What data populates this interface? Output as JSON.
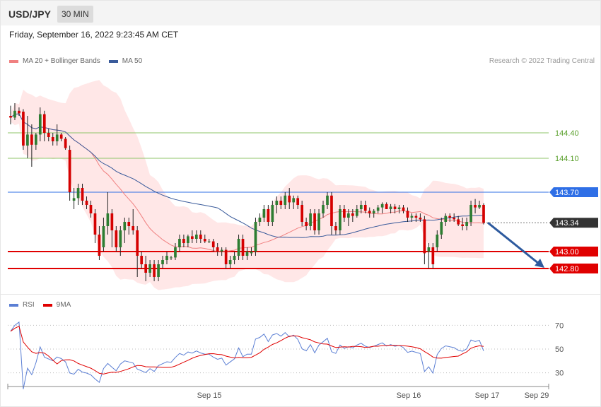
{
  "header": {
    "symbol": "USD/JPY",
    "timeframe": "30 MIN"
  },
  "datetime": "Friday, September 16, 2022 9:23:45 AM CET",
  "copyright": "Research © 2022 Trading Central",
  "legend": {
    "main": [
      {
        "label": "MA 20 + Bollinger Bands",
        "color": "#f08080"
      },
      {
        "label": "MA 50",
        "color": "#3a5b9b"
      }
    ],
    "rsi": [
      {
        "label": "RSI",
        "color": "#5b7fd4"
      },
      {
        "label": "9MA",
        "color": "#e00000"
      }
    ]
  },
  "chart_data": [
    {
      "type": "candlestick",
      "ylim": [
        142.6,
        144.9
      ],
      "x_ticks": [
        "Sep 15",
        "Sep 16",
        "Sep 17",
        "Sep 29"
      ],
      "levels": [
        {
          "value": 144.4,
          "label": "144.40",
          "role": "resistance",
          "color": "#8fc46a"
        },
        {
          "value": 144.1,
          "label": "144.10",
          "role": "resistance",
          "color": "#8fc46a"
        },
        {
          "value": 143.7,
          "label": "143.70",
          "role": "pivot",
          "color": "#2f6fe6"
        },
        {
          "value": 143.34,
          "label": "143.34",
          "role": "last",
          "color": "#333333"
        },
        {
          "value": 143.0,
          "label": "143.00",
          "role": "support",
          "color": "#e00000"
        },
        {
          "value": 142.8,
          "label": "142.80",
          "role": "support",
          "color": "#e00000"
        }
      ],
      "forecast_arrow": {
        "from": 143.34,
        "to": 142.8,
        "color": "#2d5a9e"
      },
      "ohlc": [
        [
          144.6,
          144.72,
          144.5,
          144.58
        ],
        [
          144.58,
          144.75,
          144.55,
          144.66
        ],
        [
          144.66,
          144.7,
          144.6,
          144.63
        ],
        [
          144.65,
          144.68,
          144.2,
          144.25
        ],
        [
          144.25,
          144.6,
          144.1,
          144.38
        ],
        [
          144.38,
          144.5,
          144.0,
          144.26
        ],
        [
          144.26,
          144.4,
          144.2,
          144.38
        ],
        [
          144.38,
          144.7,
          144.3,
          144.62
        ],
        [
          144.62,
          144.66,
          144.3,
          144.4
        ],
        [
          144.4,
          144.45,
          144.3,
          144.35
        ],
        [
          144.35,
          144.4,
          144.25,
          144.3
        ],
        [
          144.3,
          144.5,
          144.25,
          144.38
        ],
        [
          144.38,
          144.4,
          144.3,
          144.33
        ],
        [
          144.33,
          144.35,
          144.2,
          144.22
        ],
        [
          144.2,
          144.25,
          143.6,
          143.7
        ],
        [
          143.6,
          143.75,
          143.5,
          143.63
        ],
        [
          143.63,
          143.8,
          143.55,
          143.75
        ],
        [
          143.75,
          143.8,
          143.55,
          143.6
        ],
        [
          143.6,
          143.65,
          143.5,
          143.55
        ],
        [
          143.55,
          143.6,
          143.4,
          143.45
        ],
        [
          143.45,
          143.5,
          143.1,
          143.2
        ],
        [
          143.2,
          143.3,
          142.9,
          142.95
        ],
        [
          143.05,
          143.4,
          143.0,
          143.3
        ],
        [
          143.3,
          143.7,
          143.2,
          143.45
        ],
        [
          143.45,
          143.5,
          143.05,
          143.25
        ],
        [
          143.25,
          143.3,
          143.0,
          143.05
        ],
        [
          143.05,
          143.3,
          142.95,
          143.25
        ],
        [
          143.25,
          143.4,
          143.1,
          143.35
        ],
        [
          143.35,
          143.4,
          143.2,
          143.3
        ],
        [
          143.3,
          143.5,
          143.2,
          143.25
        ],
        [
          143.25,
          143.3,
          142.7,
          142.95
        ],
        [
          142.95,
          143.0,
          142.8,
          142.85
        ],
        [
          142.85,
          142.95,
          142.65,
          142.75
        ],
        [
          142.75,
          142.9,
          142.7,
          142.85
        ],
        [
          142.85,
          142.9,
          142.65,
          142.7
        ],
        [
          142.7,
          142.9,
          142.65,
          142.85
        ],
        [
          142.85,
          142.95,
          142.8,
          142.9
        ],
        [
          142.9,
          143.0,
          142.85,
          142.95
        ],
        [
          142.93,
          142.95,
          142.9,
          142.93
        ],
        [
          142.93,
          143.1,
          142.9,
          143.05
        ],
        [
          143.05,
          143.2,
          143.0,
          143.15
        ],
        [
          143.15,
          143.2,
          143.05,
          143.1
        ],
        [
          143.1,
          143.2,
          143.05,
          143.18
        ],
        [
          143.18,
          143.25,
          143.1,
          143.15
        ],
        [
          143.15,
          143.25,
          143.1,
          143.2
        ],
        [
          143.2,
          143.25,
          143.1,
          143.15
        ],
        [
          143.15,
          143.2,
          143.1,
          143.12
        ],
        [
          143.12,
          143.15,
          143.1,
          143.12
        ],
        [
          143.12,
          143.15,
          143.0,
          143.05
        ],
        [
          143.05,
          143.1,
          142.95,
          143.0
        ],
        [
          143.0,
          143.05,
          142.95,
          143.02
        ],
        [
          143.02,
          143.05,
          142.8,
          142.85
        ],
        [
          142.85,
          142.95,
          142.8,
          142.9
        ],
        [
          142.9,
          143.0,
          142.85,
          142.95
        ],
        [
          142.95,
          143.2,
          142.9,
          143.15
        ],
        [
          143.15,
          143.2,
          142.9,
          142.95
        ],
        [
          142.95,
          143.05,
          142.9,
          143.0
        ],
        [
          142.98,
          143.05,
          142.95,
          143.0
        ],
        [
          143.0,
          143.4,
          142.95,
          143.35
        ],
        [
          143.35,
          143.45,
          143.3,
          143.4
        ],
        [
          143.4,
          143.55,
          143.35,
          143.5
        ],
        [
          143.5,
          143.55,
          143.3,
          143.35
        ],
        [
          143.35,
          143.6,
          143.3,
          143.55
        ],
        [
          143.55,
          143.65,
          143.45,
          143.6
        ],
        [
          143.6,
          143.65,
          143.5,
          143.55
        ],
        [
          143.55,
          143.7,
          143.5,
          143.66
        ],
        [
          143.66,
          143.75,
          143.5,
          143.58
        ],
        [
          143.58,
          143.66,
          143.5,
          143.63
        ],
        [
          143.63,
          143.66,
          143.5,
          143.55
        ],
        [
          143.55,
          143.6,
          143.3,
          143.35
        ],
        [
          143.35,
          143.4,
          143.25,
          143.3
        ],
        [
          143.3,
          143.5,
          143.25,
          143.45
        ],
        [
          143.45,
          143.5,
          143.2,
          143.25
        ],
        [
          143.25,
          143.5,
          143.2,
          143.45
        ],
        [
          143.45,
          143.6,
          143.4,
          143.55
        ],
        [
          143.55,
          143.7,
          143.5,
          143.66
        ],
        [
          143.66,
          143.7,
          143.2,
          143.3
        ],
        [
          143.3,
          143.35,
          143.2,
          143.25
        ],
        [
          143.25,
          143.55,
          143.2,
          143.5
        ],
        [
          143.5,
          143.55,
          143.35,
          143.4
        ],
        [
          143.4,
          143.5,
          143.3,
          143.45
        ],
        [
          143.45,
          143.5,
          143.35,
          143.42
        ],
        [
          143.42,
          143.55,
          143.4,
          143.5
        ],
        [
          143.5,
          143.6,
          143.45,
          143.55
        ],
        [
          143.55,
          143.6,
          143.45,
          143.48
        ],
        [
          143.48,
          143.52,
          143.4,
          143.45
        ],
        [
          143.45,
          143.5,
          143.4,
          143.48
        ],
        [
          143.48,
          143.55,
          143.45,
          143.52
        ],
        [
          143.52,
          143.58,
          143.45,
          143.56
        ],
        [
          143.56,
          143.58,
          143.5,
          143.5
        ],
        [
          143.5,
          143.56,
          143.45,
          143.53
        ],
        [
          143.53,
          143.56,
          143.45,
          143.5
        ],
        [
          143.5,
          143.55,
          143.45,
          143.52
        ],
        [
          143.52,
          143.55,
          143.45,
          143.48
        ],
        [
          143.48,
          143.52,
          143.35,
          143.4
        ],
        [
          143.4,
          143.45,
          143.35,
          143.42
        ],
        [
          143.42,
          143.45,
          143.35,
          143.4
        ],
        [
          143.4,
          143.45,
          143.35,
          143.38
        ],
        [
          143.38,
          143.42,
          142.85,
          142.98
        ],
        [
          143.0,
          143.1,
          142.8,
          143.05
        ],
        [
          143.05,
          143.1,
          142.8,
          142.85
        ],
        [
          143.05,
          143.25,
          143.0,
          143.2
        ],
        [
          143.2,
          143.4,
          143.15,
          143.35
        ],
        [
          143.35,
          143.45,
          143.3,
          143.42
        ],
        [
          143.42,
          143.45,
          143.35,
          143.4
        ],
        [
          143.4,
          143.45,
          143.35,
          143.38
        ],
        [
          143.38,
          143.42,
          143.3,
          143.32
        ],
        [
          143.32,
          143.4,
          143.25,
          143.3
        ],
        [
          143.3,
          143.4,
          143.25,
          143.35
        ],
        [
          143.35,
          143.6,
          143.3,
          143.55
        ],
        [
          143.55,
          143.62,
          143.45,
          143.52
        ],
        [
          143.52,
          143.6,
          143.5,
          143.55
        ],
        [
          143.55,
          143.57,
          143.32,
          143.34
        ]
      ]
    },
    {
      "type": "line",
      "ylim": [
        20,
        80
      ],
      "y_ticks": [
        70,
        50,
        30
      ],
      "series": [
        {
          "name": "RSI"
        },
        {
          "name": "9MA"
        }
      ]
    }
  ]
}
